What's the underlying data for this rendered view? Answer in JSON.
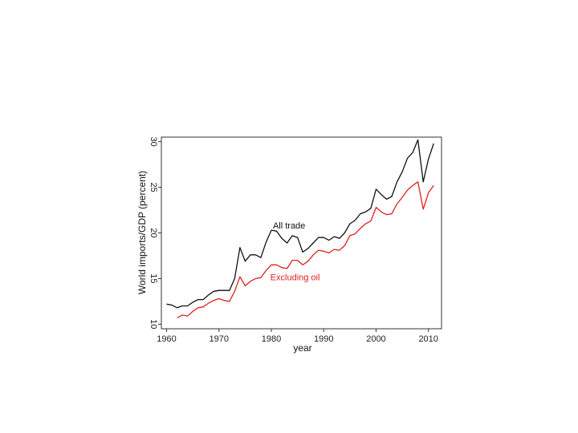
{
  "chart_data": {
    "type": "line",
    "xlabel": "year",
    "ylabel": "World imports/GDP (percent)",
    "xlim": [
      1959,
      2012.5
    ],
    "ylim": [
      9.5,
      30.5
    ],
    "xticks": [
      1960,
      1970,
      1980,
      1990,
      2000,
      2010
    ],
    "yticks": [
      10,
      15,
      20,
      25,
      30
    ],
    "grid": false,
    "colors": {
      "all_trade": "#111111",
      "excluding_oil": "#e02020"
    },
    "series": [
      {
        "name": "All trade",
        "color": "#111111",
        "x": [
          1960,
          1961,
          1962,
          1963,
          1964,
          1965,
          1966,
          1967,
          1968,
          1969,
          1970,
          1971,
          1972,
          1973,
          1974,
          1975,
          1976,
          1977,
          1978,
          1979,
          1980,
          1981,
          1982,
          1983,
          1984,
          1985,
          1986,
          1987,
          1988,
          1989,
          1990,
          1991,
          1992,
          1993,
          1994,
          1995,
          1996,
          1997,
          1998,
          1999,
          2000,
          2001,
          2002,
          2003,
          2004,
          2005,
          2006,
          2007,
          2008,
          2009,
          2010,
          2011
        ],
        "values": [
          12.2,
          12.1,
          11.8,
          12.0,
          12.0,
          12.4,
          12.7,
          12.7,
          13.2,
          13.6,
          13.7,
          13.7,
          13.7,
          15.0,
          18.4,
          16.9,
          17.6,
          17.6,
          17.3,
          19.0,
          20.3,
          20.2,
          19.4,
          18.9,
          19.7,
          19.5,
          17.9,
          18.3,
          18.9,
          19.5,
          19.5,
          19.2,
          19.6,
          19.4,
          20.0,
          21.0,
          21.4,
          22.1,
          22.3,
          22.7,
          24.8,
          24.2,
          23.7,
          24.0,
          25.6,
          26.7,
          28.2,
          28.8,
          30.2,
          25.6,
          28.1,
          29.8
        ]
      },
      {
        "name": "Excluding oil",
        "color": "#e02020",
        "x": [
          1962,
          1963,
          1964,
          1965,
          1966,
          1967,
          1968,
          1969,
          1970,
          1971,
          1972,
          1973,
          1974,
          1975,
          1976,
          1977,
          1978,
          1979,
          1980,
          1981,
          1982,
          1983,
          1984,
          1985,
          1986,
          1987,
          1988,
          1989,
          1990,
          1991,
          1992,
          1993,
          1994,
          1995,
          1996,
          1997,
          1998,
          1999,
          2000,
          2001,
          2002,
          2003,
          2004,
          2005,
          2006,
          2007,
          2008,
          2009,
          2010,
          2011
        ],
        "values": [
          10.7,
          11.0,
          10.9,
          11.4,
          11.8,
          11.9,
          12.3,
          12.6,
          12.8,
          12.6,
          12.5,
          13.6,
          15.2,
          14.2,
          14.7,
          15.0,
          15.1,
          15.9,
          16.5,
          16.5,
          16.2,
          16.1,
          17.0,
          17.0,
          16.5,
          16.9,
          17.6,
          18.1,
          18.0,
          17.8,
          18.2,
          18.1,
          18.6,
          19.7,
          19.9,
          20.5,
          21.0,
          21.3,
          22.8,
          22.3,
          22.0,
          22.1,
          23.2,
          23.9,
          24.7,
          25.2,
          25.6,
          22.6,
          24.4,
          25.2
        ]
      }
    ],
    "annotations": [
      {
        "text": "All trade",
        "series": "All trade",
        "at": [
          1980.3,
          20.5
        ]
      },
      {
        "text": "Excluding oil",
        "series": "Excluding oil",
        "at": [
          1979.8,
          14.8
        ]
      }
    ]
  }
}
